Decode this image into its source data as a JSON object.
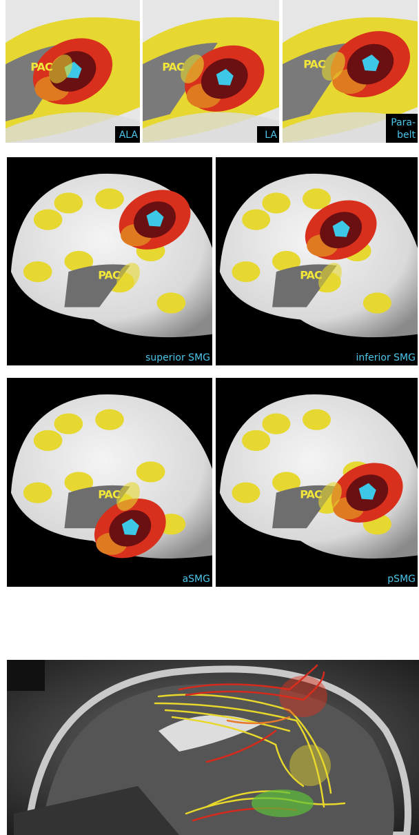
{
  "panels": [
    {
      "pac": "PAC",
      "label_lines": [
        "ALA"
      ]
    },
    {
      "pac": "PAC",
      "label_lines": [
        "LA"
      ]
    },
    {
      "pac": "PAC",
      "label_lines": [
        "Para-",
        "belt"
      ]
    },
    {
      "pac": "PAC",
      "label_lines": [
        "superior SMG"
      ]
    },
    {
      "pac": "PAC",
      "label_lines": [
        "inferior SMG"
      ]
    },
    {
      "pac": "PAC",
      "label_lines": [
        "aSMG"
      ]
    },
    {
      "pac": "PAC",
      "label_lines": [
        "pSMG"
      ]
    }
  ]
}
